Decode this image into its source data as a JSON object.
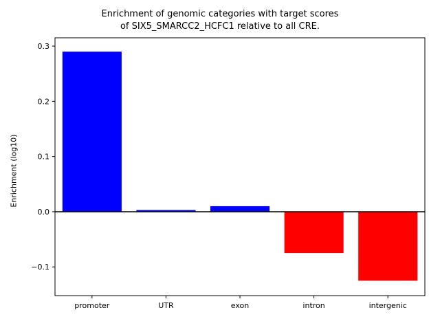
{
  "figure": {
    "title_line1": "Enrichment of genomic categories with target scores",
    "title_line2": "of SIX5_SMARCC2_HCFC1 relative to all CRE."
  },
  "chart_data": {
    "type": "bar",
    "title": "Enrichment of genomic categories with target scores of SIX5_SMARCC2_HCFC1 relative to all CRE.",
    "categories": [
      "promoter",
      "UTR",
      "exon",
      "intron",
      "intergenic"
    ],
    "values": [
      0.29,
      0.003,
      0.01,
      -0.075,
      -0.125
    ],
    "xlabel": "",
    "ylabel": "Enrichment (log10)",
    "ylim": [
      -0.152,
      0.315
    ],
    "yticks": [
      -0.1,
      0.0,
      0.1,
      0.2,
      0.3
    ],
    "positive_color": "#0000ff",
    "negative_color": "#ff0000",
    "zero_line": true,
    "grid": false,
    "legend": null
  }
}
